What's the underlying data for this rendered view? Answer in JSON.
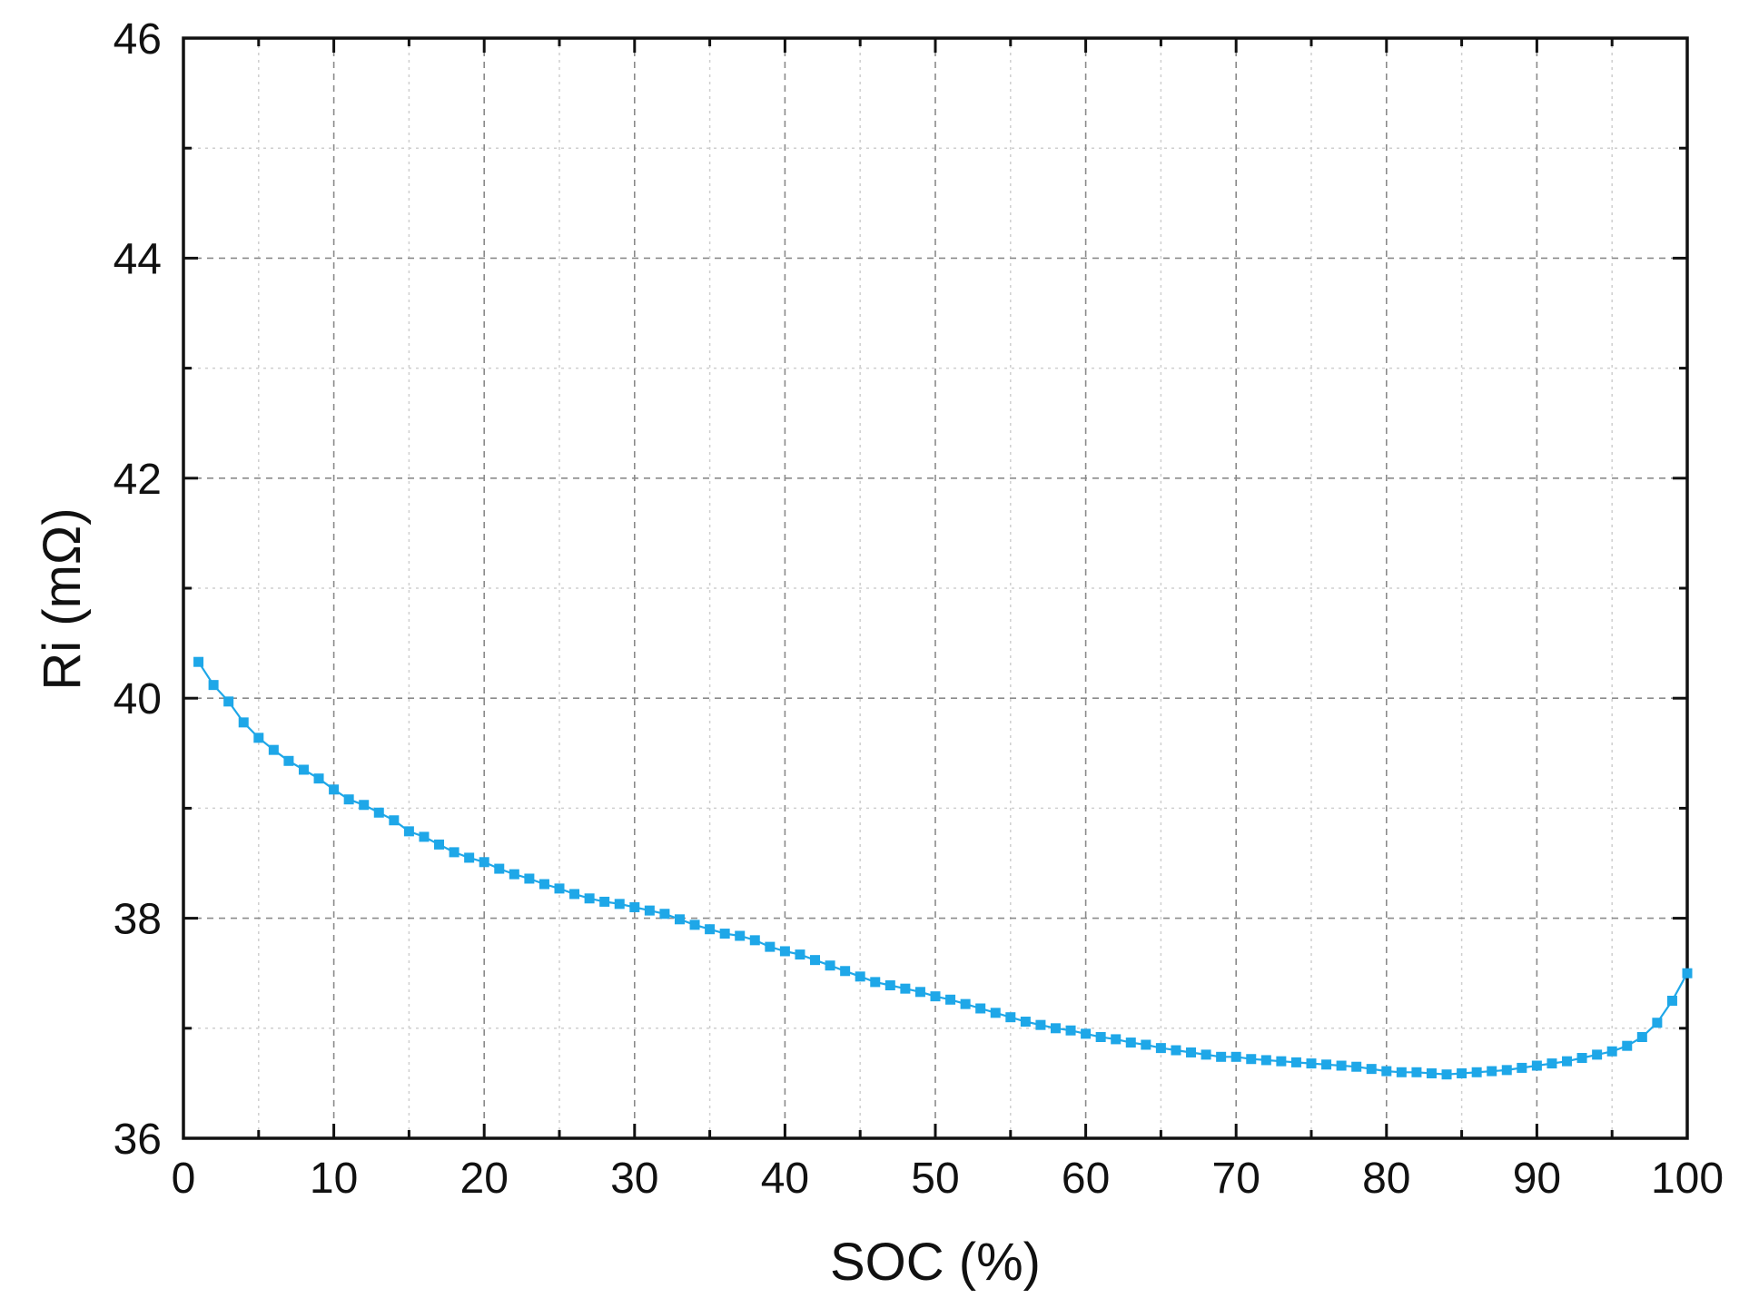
{
  "chart_data": {
    "type": "line",
    "title": "",
    "xlabel": "SOC (%)",
    "ylabel": "Ri (mΩ)",
    "xlim": [
      0,
      100
    ],
    "ylim": [
      36,
      46
    ],
    "xticks": [
      0,
      10,
      20,
      30,
      40,
      50,
      60,
      70,
      80,
      90,
      100
    ],
    "yticks": [
      36,
      38,
      40,
      42,
      44,
      46
    ],
    "x_minor_step": 5,
    "y_minor_step": 1,
    "grid": true,
    "legend": "none",
    "marker": "square",
    "series_color": "#1ea7e8",
    "series": [
      {
        "x": [
          1,
          2,
          3,
          4,
          5,
          6,
          7,
          8,
          9,
          10,
          11,
          12,
          13,
          14,
          15,
          16,
          17,
          18,
          19,
          20,
          21,
          22,
          23,
          24,
          25,
          26,
          27,
          28,
          29,
          30,
          31,
          32,
          33,
          34,
          35,
          36,
          37,
          38,
          39,
          40,
          41,
          42,
          43,
          44,
          45,
          46,
          47,
          48,
          49,
          50,
          51,
          52,
          53,
          54,
          55,
          56,
          57,
          58,
          59,
          60,
          61,
          62,
          63,
          64,
          65,
          66,
          67,
          68,
          69,
          70,
          71,
          72,
          73,
          74,
          75,
          76,
          77,
          78,
          79,
          80,
          81,
          82,
          83,
          84,
          85,
          86,
          87,
          88,
          89,
          90,
          91,
          92,
          93,
          94,
          95,
          96,
          97,
          98,
          99,
          100
        ],
        "values": [
          40.33,
          40.12,
          39.97,
          39.78,
          39.64,
          39.53,
          39.43,
          39.35,
          39.27,
          39.17,
          39.08,
          39.03,
          38.96,
          38.89,
          38.79,
          38.74,
          38.67,
          38.6,
          38.55,
          38.51,
          38.45,
          38.4,
          38.36,
          38.31,
          38.27,
          38.22,
          38.18,
          38.15,
          38.13,
          38.1,
          38.07,
          38.04,
          37.99,
          37.94,
          37.9,
          37.86,
          37.84,
          37.8,
          37.74,
          37.7,
          37.67,
          37.62,
          37.57,
          37.52,
          37.47,
          37.42,
          37.39,
          37.36,
          37.33,
          37.29,
          37.26,
          37.22,
          37.18,
          37.14,
          37.1,
          37.06,
          37.03,
          37.0,
          36.98,
          36.95,
          36.92,
          36.9,
          36.87,
          36.85,
          36.82,
          36.8,
          36.78,
          36.76,
          36.74,
          36.74,
          36.72,
          36.71,
          36.7,
          36.69,
          36.68,
          36.67,
          36.66,
          36.65,
          36.63,
          36.61,
          36.6,
          36.6,
          36.59,
          36.58,
          36.59,
          36.6,
          36.61,
          36.62,
          36.64,
          36.66,
          36.68,
          36.7,
          36.73,
          36.76,
          36.79,
          36.84,
          36.92,
          37.05,
          37.25,
          37.5
        ]
      }
    ]
  }
}
